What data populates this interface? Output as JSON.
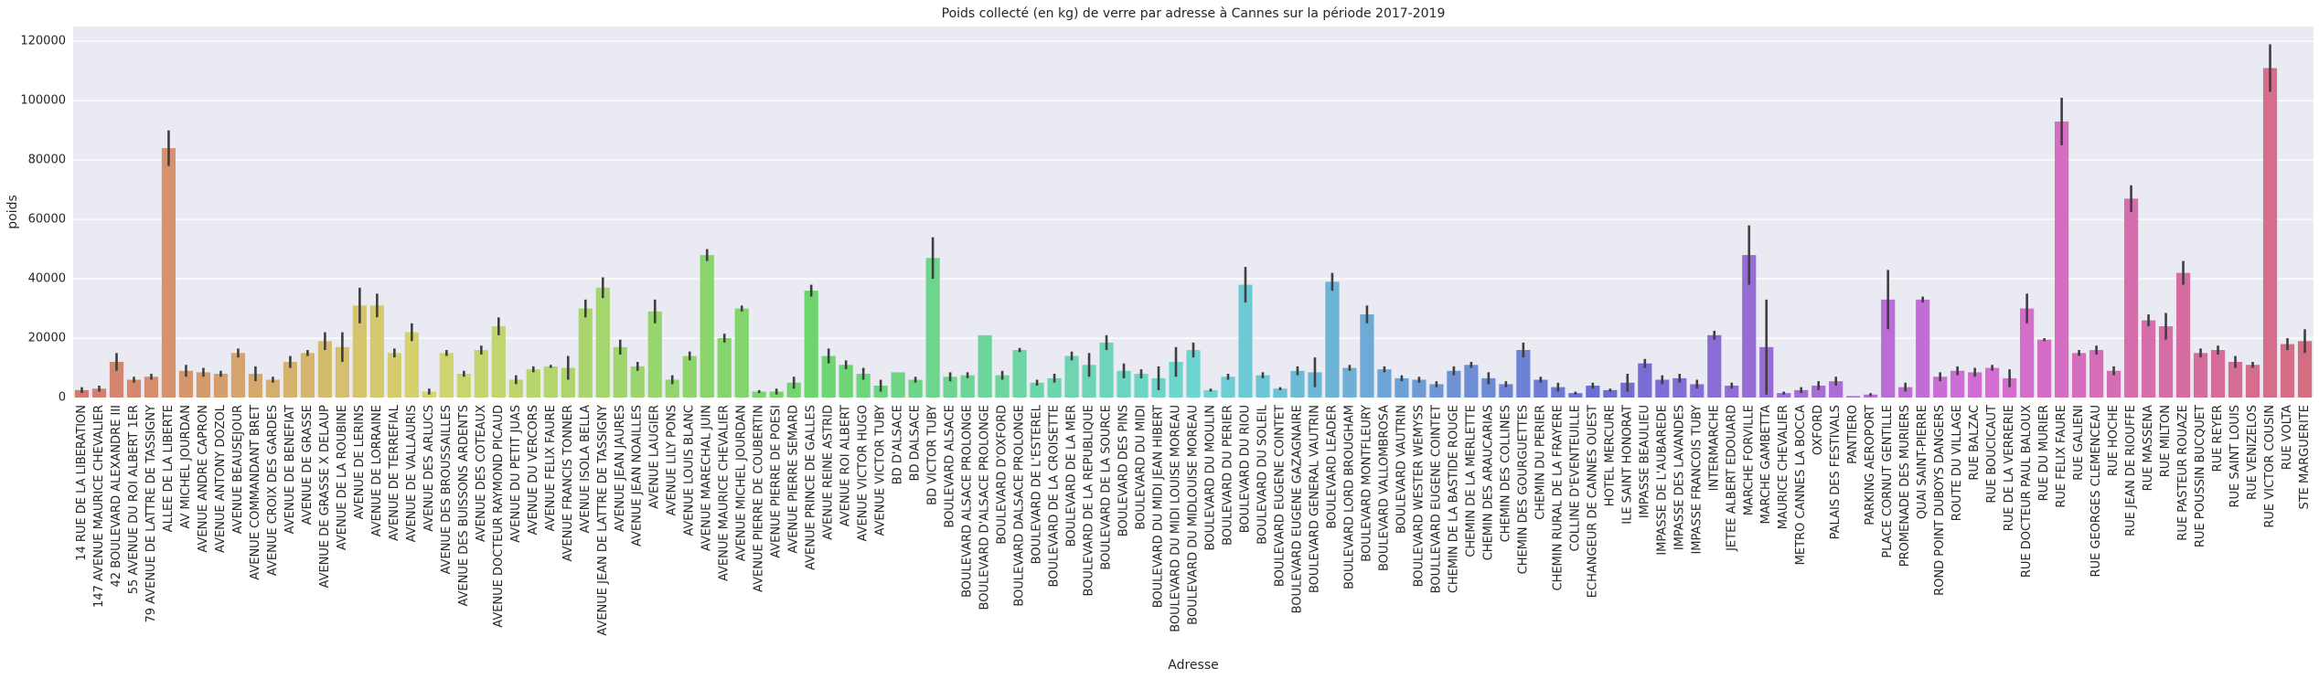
{
  "chart_data": {
    "type": "bar",
    "title": "Poids collecté (en kg) de verre par adresse à Cannes sur la période 2017-2019",
    "x_label": "Adresse",
    "y_label": "poids",
    "palette": "husl",
    "grid": true,
    "ylim": [
      0,
      125000
    ],
    "yticks": [
      0,
      20000,
      40000,
      60000,
      80000,
      100000,
      120000
    ],
    "categories": [
      "14 RUE DE LA LIBERATION",
      "147 AVENUE MAURICE CHEVALIER",
      "42 BOULEVARD ALEXANDRE III",
      "55 AVENUE DU ROI ALBERT 1ER",
      "79 AVENUE DE LATTRE DE TASSIGNY",
      "ALLEE DE LA LIBERTE",
      "AV MICHEL JOURDAN",
      "AVENUE ANDRE CAPRON",
      "AVENUE ANTONY DOZOL",
      "AVENUE BEAUSEJOUR",
      "AVENUE COMMANDANT BRET",
      "AVENUE CROIX DES GARDES",
      "AVENUE DE BENEFIAT",
      "AVENUE DE GRASSE",
      "AVENUE DE GRASSE X DELAUP",
      "AVENUE DE LA ROUBINE",
      "AVENUE DE LERINS",
      "AVENUE DE LORRAINE",
      "AVENUE DE TERREFIAL",
      "AVENUE DE VALLAURIS",
      "AVENUE DES ARLUCS",
      "AVENUE DES BROUSSAILLES",
      "AVENUE DES BUISSONS ARDENTS",
      "AVENUE DES COTEAUX",
      "AVENUE DOCTEUR RAYMOND PICAUD",
      "AVENUE DU PETIT JUAS",
      "AVENUE DU VERCORS",
      "AVENUE FELIX FAURE",
      "AVENUE FRANCIS TONNER",
      "AVENUE ISOLA BELLA",
      "AVENUE JEAN DE LATTRE DE TASSIGNY",
      "AVENUE JEAN JAURES",
      "AVENUE JEAN NOAILLES",
      "AVENUE LAUGIER",
      "AVENUE LILY PONS",
      "AVENUE LOUIS BLANC",
      "AVENUE MARECHAL JUIN",
      "AVENUE MAURICE CHEVALIER",
      "AVENUE MICHEL JOURDAN",
      "AVENUE PIERRE DE COUBERTIN",
      "AVENUE PIERRE DE POESI",
      "AVENUE PIERRE SEMARD",
      "AVENUE PRINCE DE GALLES",
      "AVENUE REINE ASTRID",
      "AVENUE ROI ALBERT",
      "AVENUE VICTOR HUGO",
      "AVENUE VICTOR TUBY",
      "BD D'ALSACE",
      "BD DALSACE",
      "BD VICTOR TUBY",
      "BOULEVARD ALSACE",
      "BOULEVARD ALSACE PROLONGE",
      "BOULEVARD D'ALSACE PROLONGE",
      "BOULEVARD D'OXFORD",
      "BOULEVARD DALSACE PROLONGE",
      "BOULEVARD DE L'ESTEREL",
      "BOULEVARD DE LA CROISETTE",
      "BOULEVARD DE LA MER",
      "BOULEVARD DE LA REPUBLIQUE",
      "BOULEVARD DE LA SOURCE",
      "BOULEVARD DES PINS",
      "BOULEVARD DU MIDI",
      "BOULEVARD DU MIDI JEAN HIBERT",
      "BOULEVARD DU MIDI LOUISE MOREAU",
      "BOULEVARD DU MIDLOUISE MOREAU",
      "BOULEVARD DU MOULIN",
      "BOULEVARD DU PERIER",
      "BOULEVARD DU RIOU",
      "BOULEVARD DU SOLEIL",
      "BOULEVARD EUGENE COINTET",
      "BOULEVARD EUGENE GAZAGNAIRE",
      "BOULEVARD GENERAL VAUTRIN",
      "BOULEVARD LEADER",
      "BOULEVARD LORD BROUGHAM",
      "BOULEVARD MONTFLEURY",
      "BOULEVARD VALLOMBROSA",
      "BOULEVARD VAUTRIN",
      "BOULEVARD WESTER WEMYSS",
      "BOULLEVARD EUGENE COINTET",
      "CHEMIN DE LA BASTIDE ROUGE",
      "CHEMIN DE LA MERLETTE",
      "CHEMIN DES ARAUCARIAS",
      "CHEMIN DES COLLINES",
      "CHEMIN DES GOURGUETTES",
      "CHEMIN DU PERIER",
      "CHEMIN RURAL DE LA FRAYERE",
      "COLLINE D'EVENTEUILLE",
      "ECHANGEUR DE CANNES OUEST",
      "HOTEL MERCURE",
      "ILE SAINT HONORAT",
      "IMPASSE BEAULIEU",
      "IMPASSE DE L'AUBAREDE",
      "IMPASSE DES LAVANDES",
      "IMPASSE FRANCOIS TUBY",
      "INTERMARCHE",
      "JETEE ALBERT EDOUARD",
      "MARCHE FORVILLE",
      "MARCHE GAMBETTA",
      "MAURICE CHEVALIER",
      "METRO CANNES LA BOCCA",
      "OXFORD",
      "PALAIS DES FESTIVALS",
      "PANTIERO",
      "PARKING AEROPORT",
      "PLACE CORNUT GENTILLE",
      "PROMENADE DES MURIERS",
      "QUAI SAINT-PIERRE",
      "ROND POINT DUBOYS DANGERS",
      "ROUTE DU VILLAGE",
      "RUE BALZAC",
      "RUE BOUCICAUT",
      "RUE DE LA VERRERIE",
      "RUE DOCTEUR PAUL BALOUX",
      "RUE DU MURIER",
      "RUE FELIX FAURE",
      "RUE GALIENI",
      "RUE GEORGES CLEMENCEAU",
      "RUE HOCHE",
      "RUE JEAN DE RIOUFFE",
      "RUE MASSENA",
      "RUE MILTON",
      "RUE PASTEUR ROUAZE",
      "RUE POUSSIN BUCQUET",
      "RUE REYER",
      "RUE SAINT LOUIS",
      "RUE VENIZELOS",
      "RUE VICTOR COUSIN",
      "RUE VOLTA",
      "STE MARGUERITE"
    ],
    "values": [
      2500,
      3000,
      12000,
      6000,
      7000,
      84000,
      9000,
      8500,
      8000,
      15000,
      8000,
      6000,
      12000,
      15000,
      19000,
      17000,
      31000,
      31000,
      15000,
      22000,
      2000,
      15000,
      8000,
      16000,
      24000,
      6000,
      9500,
      10500,
      10000,
      30000,
      37000,
      17000,
      10500,
      29000,
      6000,
      14000,
      48000,
      20000,
      30000,
      2000,
      2000,
      5000,
      36000,
      14000,
      11000,
      8000,
      4000,
      8500,
      6000,
      47000,
      7000,
      7500,
      21000,
      7500,
      16000,
      5000,
      6500,
      14000,
      11000,
      18500,
      9000,
      8000,
      6500,
      12000,
      16000,
      2500,
      7000,
      38000,
      7500,
      3000,
      9000,
      8500,
      39000,
      10000,
      28000,
      9500,
      6500,
      6000,
      4500,
      9000,
      11000,
      6500,
      4500,
      16000,
      6000,
      3500,
      1500,
      4000,
      2500,
      5000,
      11500,
      6000,
      6500,
      4500,
      21000,
      4000,
      48000,
      17000,
      1500,
      2500,
      4000,
      5500,
      500,
      1000,
      33000,
      3500,
      33000,
      7000,
      9000,
      8500,
      10000,
      6500,
      30000,
      19500,
      93000,
      15000,
      16000,
      9000,
      67000,
      26000,
      24000,
      42000,
      15000,
      16000,
      12000,
      11000,
      111000,
      18000,
      19000
    ],
    "errors": [
      1000,
      1000,
      3000,
      1000,
      1000,
      6000,
      2000,
      1500,
      1000,
      1500,
      2500,
      1000,
      2000,
      1000,
      3000,
      5000,
      6000,
      4000,
      1500,
      3000,
      1000,
      1000,
      1000,
      1500,
      3000,
      1500,
      1000,
      500,
      4000,
      3000,
      3500,
      2500,
      1500,
      4000,
      1500,
      1500,
      2000,
      1500,
      1000,
      500,
      1000,
      2000,
      2000,
      2500,
      1500,
      2000,
      2000,
      0,
      1000,
      7000,
      1500,
      1000,
      0,
      1500,
      700,
      1000,
      1500,
      1500,
      4000,
      2500,
      2500,
      1500,
      4000,
      5000,
      2500,
      500,
      1000,
      6000,
      1000,
      500,
      1500,
      5000,
      3000,
      1000,
      3000,
      1000,
      1000,
      1000,
      1000,
      1500,
      1000,
      2000,
      1000,
      2500,
      1000,
      1500,
      500,
      1000,
      500,
      3000,
      1500,
      1500,
      1500,
      1500,
      1500,
      1000,
      10000,
      16000,
      500,
      1000,
      1500,
      1500,
      0,
      500,
      10000,
      1500,
      1000,
      1500,
      1500,
      1500,
      1000,
      3000,
      5000,
      500,
      8000,
      1000,
      1500,
      1500,
      4500,
      2000,
      4500,
      4000,
      1500,
      1500,
      2000,
      1000,
      8000,
      2000,
      4000
    ]
  }
}
